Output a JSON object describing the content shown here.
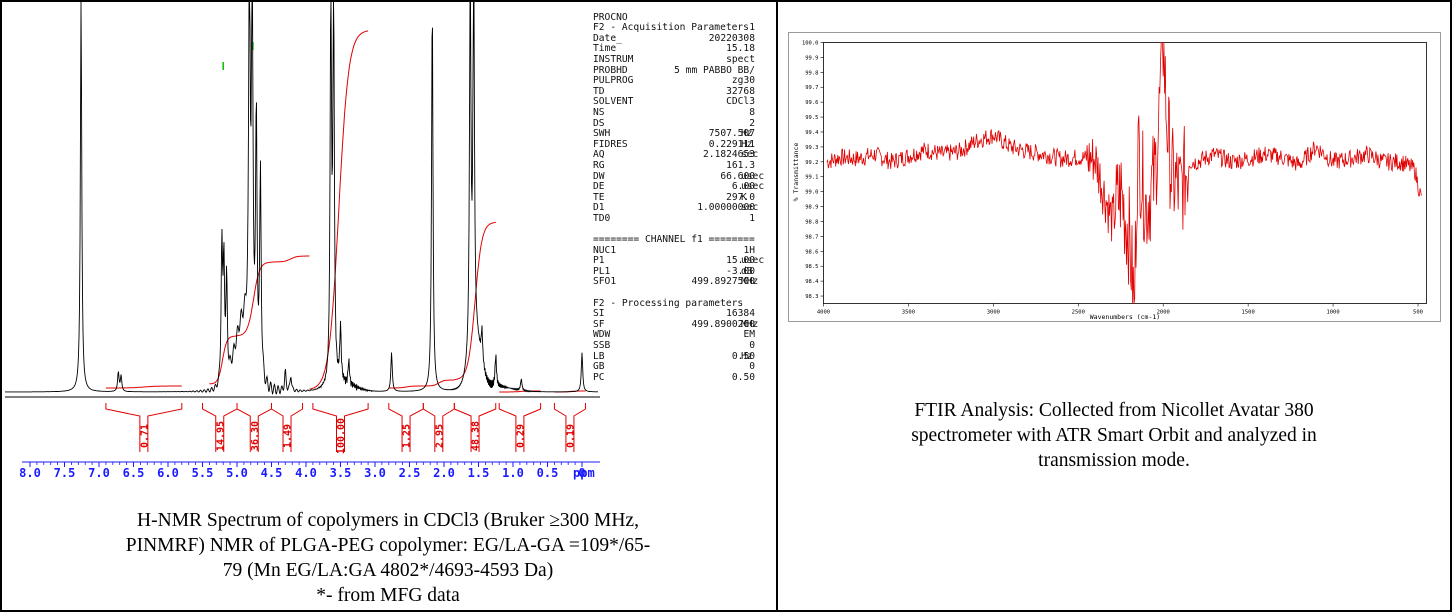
{
  "nmr": {
    "caption_lines": [
      "H-NMR Spectrum of copolymers in CDCl3 (Bruker ≥300 MHz,",
      "PINMRF) NMR of PLGA-PEG copolymer: EG/LA-GA =109*/65-",
      "79 (Mn EG/LA:GA 4802*/4693-4593 Da)",
      "*- from MFG data"
    ],
    "axis_unit": "ppm",
    "ticks": [
      "8.0",
      "7.5",
      "7.0",
      "6.5",
      "6.0",
      "5.5",
      "5.0",
      "4.5",
      "4.0",
      "3.5",
      "3.0",
      "2.5",
      "2.0",
      "1.5",
      "1.0",
      "0.5",
      "0"
    ],
    "integrals": [
      {
        "value": "0.71",
        "from": 6.9,
        "to": 5.8
      },
      {
        "value": "14.95",
        "from": 5.5,
        "to": 5.0
      },
      {
        "value": "36.30",
        "from": 5.0,
        "to": 4.5
      },
      {
        "value": "1.49",
        "from": 4.5,
        "to": 4.05
      },
      {
        "value": "100.00",
        "from": 3.9,
        "to": 3.1
      },
      {
        "value": "1.25",
        "from": 2.8,
        "to": 2.3
      },
      {
        "value": "2.95",
        "from": 2.3,
        "to": 1.85
      },
      {
        "value": "48.38",
        "from": 1.85,
        "to": 1.25
      },
      {
        "value": "0.29",
        "from": 1.2,
        "to": 0.6
      },
      {
        "value": "0.19",
        "from": 0.4,
        "to": -0.05
      }
    ],
    "params": {
      "top": {
        "k": "PROCNO",
        "v": "1"
      },
      "acq_title": "F2 - Acquisition Parameters",
      "acq": [
        {
          "k": "Date_",
          "v": "20220308",
          "u": ""
        },
        {
          "k": "Time",
          "v": "15.18",
          "u": ""
        },
        {
          "k": "INSTRUM",
          "v": "spect",
          "u": ""
        },
        {
          "k": "PROBHD",
          "v": "5 mm PABBO BB/",
          "u": ""
        },
        {
          "k": "PULPROG",
          "v": "zg30",
          "u": ""
        },
        {
          "k": "TD",
          "v": "32768",
          "u": ""
        },
        {
          "k": "SOLVENT",
          "v": "CDCl3",
          "u": ""
        },
        {
          "k": "NS",
          "v": "8",
          "u": ""
        },
        {
          "k": "DS",
          "v": "2",
          "u": ""
        },
        {
          "k": "SWH",
          "v": "7507.507",
          "u": "Hz"
        },
        {
          "k": "FIDRES",
          "v": "0.229111",
          "u": "Hz"
        },
        {
          "k": "AQ",
          "v": "2.1824653",
          "u": "sec"
        },
        {
          "k": "RG",
          "v": "161.3",
          "u": ""
        },
        {
          "k": "DW",
          "v": "66.600",
          "u": "usec"
        },
        {
          "k": "DE",
          "v": "6.00",
          "u": "usec"
        },
        {
          "k": "TE",
          "v": "297.0",
          "u": "K"
        },
        {
          "k": "D1",
          "v": "1.00000000",
          "u": "sec"
        },
        {
          "k": "TD0",
          "v": "1",
          "u": ""
        }
      ],
      "channel_title": "======== CHANNEL f1 ========",
      "channel": [
        {
          "k": "NUC1",
          "v": "1H",
          "u": ""
        },
        {
          "k": "P1",
          "v": "15.00",
          "u": "usec"
        },
        {
          "k": "PL1",
          "v": "-3.00",
          "u": "dB"
        },
        {
          "k": "SFO1",
          "v": "499.8927500",
          "u": "MHz"
        }
      ],
      "proc_title": "F2 - Processing parameters",
      "proc": [
        {
          "k": "SI",
          "v": "16384",
          "u": ""
        },
        {
          "k": "SF",
          "v": "499.8900260",
          "u": "MHz"
        },
        {
          "k": "WDW",
          "v": "EM",
          "u": ""
        },
        {
          "k": "SSB",
          "v": "0",
          "u": ""
        },
        {
          "k": "LB",
          "v": "0.50",
          "u": "Hz"
        },
        {
          "k": "GB",
          "v": "0",
          "u": ""
        },
        {
          "k": "PC",
          "v": "0.50",
          "u": ""
        }
      ]
    }
  },
  "chart_data": [
    {
      "type": "line",
      "title": "",
      "xlabel": "ppm",
      "ylabel": "",
      "xlim": [
        8.15,
        -0.2
      ],
      "x_reversed": true,
      "peaks": [
        {
          "x": 7.26,
          "height": 1.0
        },
        {
          "x": 6.72,
          "height": 0.05
        },
        {
          "x": 6.68,
          "height": 0.04
        },
        {
          "x": 5.22,
          "height": 0.36
        },
        {
          "x": 5.19,
          "height": 0.31
        },
        {
          "x": 5.15,
          "height": 0.25
        },
        {
          "x": 4.82,
          "height": 1.0
        },
        {
          "x": 4.78,
          "height": 0.98
        },
        {
          "x": 4.72,
          "height": 0.62
        },
        {
          "x": 4.66,
          "height": 0.52
        },
        {
          "x": 4.3,
          "height": 0.05
        },
        {
          "x": 4.22,
          "height": 0.04
        },
        {
          "x": 3.64,
          "height": 1.0
        },
        {
          "x": 3.6,
          "height": 1.0
        },
        {
          "x": 3.5,
          "height": 0.14
        },
        {
          "x": 3.38,
          "height": 0.06
        },
        {
          "x": 2.76,
          "height": 0.1
        },
        {
          "x": 2.17,
          "height": 1.0
        },
        {
          "x": 1.62,
          "height": 1.0
        },
        {
          "x": 1.57,
          "height": 1.0
        },
        {
          "x": 1.45,
          "height": 0.08
        },
        {
          "x": 1.25,
          "height": 0.08
        },
        {
          "x": 0.88,
          "height": 0.03
        },
        {
          "x": 0.0,
          "height": 0.1
        }
      ]
    },
    {
      "type": "line",
      "title": "",
      "xlabel": "Wavenumbers (cm-1)",
      "ylabel": "% Transmittance",
      "xlim": [
        4000,
        450
      ],
      "ylim": [
        98.25,
        100.0
      ],
      "x_reversed": true,
      "xticks": [
        4000,
        3500,
        3000,
        2500,
        2000,
        1500,
        1000,
        500
      ],
      "yticks": [
        100.0,
        99.9,
        99.8,
        99.7,
        99.6,
        99.5,
        99.4,
        99.3,
        99.2,
        99.1,
        99.0,
        98.9,
        98.8,
        98.7,
        98.6,
        98.5,
        98.4,
        98.3
      ],
      "series": [
        {
          "color": "#e00000",
          "x": [
            3980,
            3900,
            3800,
            3700,
            3600,
            3500,
            3400,
            3300,
            3200,
            3100,
            3000,
            2900,
            2800,
            2700,
            2600,
            2500,
            2400,
            2350,
            2300,
            2250,
            2200,
            2170,
            2150,
            2100,
            2050,
            2030,
            2000,
            1980,
            1950,
            1900,
            1850,
            1800,
            1700,
            1600,
            1500,
            1400,
            1300,
            1200,
            1100,
            1000,
            900,
            800,
            700,
            600,
            520,
            480
          ],
          "y": [
            99.2,
            99.23,
            99.22,
            99.25,
            99.2,
            99.24,
            99.28,
            99.25,
            99.27,
            99.34,
            99.38,
            99.3,
            99.27,
            99.25,
            99.22,
            99.23,
            99.22,
            99.0,
            98.8,
            99.0,
            98.7,
            98.25,
            99.3,
            98.9,
            99.1,
            99.4,
            100.0,
            99.5,
            99.1,
            99.0,
            99.2,
            99.2,
            99.25,
            99.2,
            99.22,
            99.25,
            99.23,
            99.18,
            99.3,
            99.2,
            99.22,
            99.25,
            99.2,
            99.2,
            99.15,
            98.95
          ]
        }
      ]
    }
  ],
  "ftir": {
    "caption_lines": [
      "FTIR Analysis: Collected from Nicollet Avatar 380",
      "spectrometer with ATR Smart Orbit and analyzed in",
      "transmission mode."
    ]
  }
}
